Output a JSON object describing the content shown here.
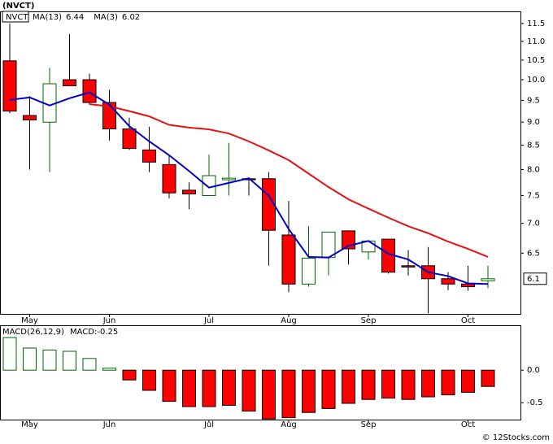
{
  "chart_data": [
    {
      "type": "candlestick",
      "title": "(NVCT)",
      "symbol": "NVCT",
      "log_scale": true,
      "categories": [
        null,
        "May",
        null,
        null,
        null,
        "Jun",
        null,
        null,
        null,
        null,
        "Jul",
        null,
        null,
        null,
        "Aug",
        null,
        null,
        null,
        "Sep",
        null,
        null,
        null,
        null,
        "Oct",
        null
      ],
      "open": [
        10.48,
        9.15,
        9.0,
        10.0,
        10.0,
        9.45,
        8.85,
        8.4,
        8.1,
        7.6,
        7.5,
        7.8,
        7.82,
        7.82,
        6.8,
        6.02,
        6.43,
        6.87,
        6.52,
        6.73,
        6.3,
        6.3,
        6.1,
        6.02,
        6.07
      ],
      "high": [
        11.5,
        9.6,
        10.3,
        11.2,
        10.15,
        9.75,
        9.1,
        8.9,
        8.3,
        7.75,
        8.3,
        8.55,
        7.85,
        7.95,
        7.4,
        6.95,
        6.85,
        6.88,
        6.7,
        6.73,
        6.55,
        6.6,
        6.2,
        6.3,
        6.3
      ],
      "low": [
        9.2,
        8.0,
        7.95,
        9.85,
        9.4,
        8.6,
        8.4,
        7.95,
        7.45,
        7.25,
        7.5,
        7.5,
        7.5,
        6.3,
        5.9,
        5.98,
        6.15,
        6.32,
        6.4,
        6.18,
        6.15,
        5.6,
        5.93,
        5.92,
        5.96
      ],
      "close": [
        9.25,
        9.05,
        9.9,
        9.85,
        9.45,
        8.85,
        8.43,
        8.15,
        7.55,
        7.53,
        7.88,
        7.83,
        7.8,
        6.88,
        6.02,
        6.42,
        6.85,
        6.57,
        6.7,
        6.2,
        6.28,
        6.1,
        6.02,
        5.98,
        6.1
      ],
      "up_color": "#006600",
      "down_color": "#ff0000",
      "series": [
        {
          "name": "MA(13)",
          "color": "#e81010",
          "legend_value": 6.44,
          "values": [
            null,
            null,
            null,
            null,
            9.41,
            9.36,
            9.25,
            9.13,
            8.94,
            8.88,
            8.84,
            8.75,
            8.58,
            8.39,
            8.19,
            7.92,
            7.66,
            7.43,
            7.26,
            7.1,
            6.95,
            6.83,
            6.69,
            6.57,
            6.44
          ]
        },
        {
          "name": "MA(3)",
          "color": "#0000cc",
          "legend_value": 6.02,
          "values": [
            9.51,
            9.57,
            9.38,
            9.55,
            9.69,
            9.4,
            8.91,
            8.58,
            8.29,
            7.97,
            7.65,
            7.74,
            7.83,
            7.5,
            6.9,
            6.44,
            6.43,
            6.62,
            6.7,
            6.49,
            6.4,
            6.2,
            6.14,
            6.03,
            6.02
          ]
        }
      ],
      "last_price": 6.1,
      "ylim": [
        5.59,
        11.85
      ],
      "yticks": [
        6.5,
        {
          "value": 7,
          "label": "7.0"
        },
        7.5,
        {
          "value": 8,
          "label": "8.0"
        },
        8.5,
        {
          "value": 9,
          "label": "9.0"
        },
        9.5,
        {
          "value": 10,
          "label": "10.0"
        },
        10.5,
        {
          "value": 11,
          "label": "11.0"
        },
        11.5
      ],
      "grid": false
    },
    {
      "type": "histogram-bar",
      "title": "MACD(26,12,9)",
      "legend": "MACD:-0.25",
      "categories": [
        null,
        "May",
        null,
        null,
        null,
        "Jun",
        null,
        null,
        null,
        null,
        "Jul",
        null,
        null,
        null,
        "Aug",
        null,
        null,
        null,
        "Sep",
        null,
        null,
        null,
        null,
        "Oct",
        null
      ],
      "values": [
        0.5,
        0.34,
        0.31,
        0.29,
        0.18,
        0.03,
        -0.15,
        -0.31,
        -0.48,
        -0.56,
        -0.56,
        -0.54,
        -0.63,
        -0.75,
        -0.73,
        -0.65,
        -0.59,
        -0.51,
        -0.45,
        -0.43,
        -0.45,
        -0.41,
        -0.38,
        -0.34,
        -0.25
      ],
      "up_color": "#006600",
      "down_color": "#ff0000",
      "ylim": [
        -0.76,
        0.69
      ],
      "yticks": [
        {
          "value": 0,
          "label": "0.0"
        },
        -0.5
      ],
      "grid": false
    },
    {
      "type": "footer",
      "text": "© 12Stocks.com"
    }
  ]
}
